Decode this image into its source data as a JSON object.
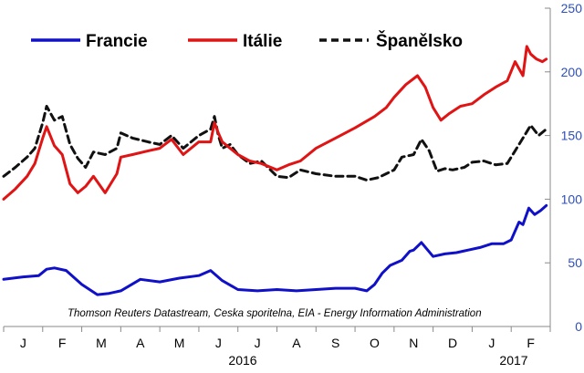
{
  "chart_data": {
    "type": "line",
    "source": "Thomson Reuters Datastream, Ceska sporitelna, EIA - Energy Information Administration",
    "x_months": [
      "J",
      "F",
      "M",
      "A",
      "M",
      "J",
      "J",
      "A",
      "S",
      "O",
      "N",
      "D",
      "J",
      "F"
    ],
    "x_years": [
      "2016",
      "2017"
    ],
    "y_ticks": [
      "0",
      "50",
      "100",
      "150",
      "200",
      "250"
    ],
    "y_axis_side": "right",
    "ylim": [
      0,
      250
    ],
    "grid": false,
    "legend_position": "top",
    "x_domain": [
      0,
      14
    ],
    "series": [
      {
        "name": "Francie",
        "color": "#1010c8",
        "dash": "solid",
        "x": [
          0,
          0.5,
          0.9,
          1.1,
          1.3,
          1.6,
          2.0,
          2.4,
          2.7,
          3.0,
          3.5,
          4.0,
          4.5,
          5.0,
          5.3,
          5.6,
          6.0,
          6.5,
          7.0,
          7.5,
          8.0,
          8.5,
          9.0,
          9.3,
          9.5,
          9.7,
          9.9,
          10.2,
          10.4,
          10.5,
          10.7,
          11.0,
          11.3,
          11.6,
          11.9,
          12.2,
          12.5,
          12.8,
          13.0,
          13.2,
          13.3,
          13.45,
          13.6,
          13.75,
          13.9
        ],
        "values": [
          37,
          39,
          40,
          45,
          46,
          44,
          33,
          25,
          26,
          28,
          37,
          35,
          38,
          40,
          44,
          36,
          29,
          28,
          29,
          28,
          29,
          30,
          30,
          28,
          33,
          42,
          48,
          52,
          59,
          60,
          66,
          55,
          57,
          58,
          60,
          62,
          65,
          65,
          68,
          82,
          80,
          93,
          88,
          91,
          95
        ]
      },
      {
        "name": "Itálie",
        "color": "#e01414",
        "dash": "solid",
        "x": [
          0,
          0.3,
          0.6,
          0.8,
          1.0,
          1.1,
          1.3,
          1.5,
          1.7,
          1.9,
          2.1,
          2.3,
          2.6,
          2.9,
          3.0,
          3.3,
          3.7,
          4.0,
          4.3,
          4.6,
          5.0,
          5.3,
          5.4,
          5.5,
          5.6,
          5.8,
          6.0,
          6.3,
          6.6,
          7.0,
          7.3,
          7.6,
          8.0,
          8.5,
          9.0,
          9.5,
          9.8,
          10.0,
          10.3,
          10.6,
          10.8,
          11.0,
          11.2,
          11.4,
          11.7,
          12.0,
          12.3,
          12.6,
          12.9,
          13.1,
          13.3,
          13.4,
          13.5,
          13.65,
          13.8,
          13.9
        ],
        "values": [
          100,
          108,
          118,
          128,
          148,
          157,
          142,
          135,
          112,
          105,
          110,
          118,
          105,
          120,
          133,
          135,
          138,
          140,
          147,
          135,
          145,
          145,
          160,
          152,
          145,
          140,
          135,
          130,
          128,
          123,
          127,
          130,
          140,
          148,
          156,
          165,
          172,
          180,
          190,
          197,
          188,
          172,
          162,
          167,
          173,
          175,
          182,
          188,
          193,
          208,
          197,
          220,
          214,
          210,
          208,
          210
        ]
      },
      {
        "name": "Španělsko",
        "color": "#111111",
        "dash": "dashed",
        "x": [
          0,
          0.3,
          0.6,
          0.8,
          1.0,
          1.1,
          1.3,
          1.5,
          1.7,
          1.9,
          2.1,
          2.3,
          2.6,
          2.9,
          3.0,
          3.3,
          3.7,
          4.0,
          4.3,
          4.6,
          5.0,
          5.3,
          5.4,
          5.5,
          5.6,
          5.8,
          6.0,
          6.3,
          6.6,
          7.0,
          7.3,
          7.6,
          8.0,
          8.5,
          9.0,
          9.3,
          9.6,
          9.8,
          10.0,
          10.2,
          10.5,
          10.7,
          10.9,
          11.1,
          11.3,
          11.5,
          11.8,
          12.0,
          12.3,
          12.6,
          12.9,
          13.1,
          13.3,
          13.5,
          13.7,
          13.9
        ],
        "values": [
          118,
          125,
          133,
          140,
          160,
          173,
          162,
          165,
          143,
          132,
          125,
          137,
          135,
          140,
          152,
          148,
          145,
          143,
          150,
          140,
          150,
          155,
          165,
          150,
          140,
          143,
          135,
          128,
          130,
          118,
          117,
          123,
          120,
          118,
          118,
          115,
          117,
          120,
          123,
          133,
          135,
          147,
          138,
          122,
          124,
          123,
          125,
          129,
          130,
          127,
          128,
          138,
          148,
          158,
          150,
          155
        ]
      }
    ]
  }
}
